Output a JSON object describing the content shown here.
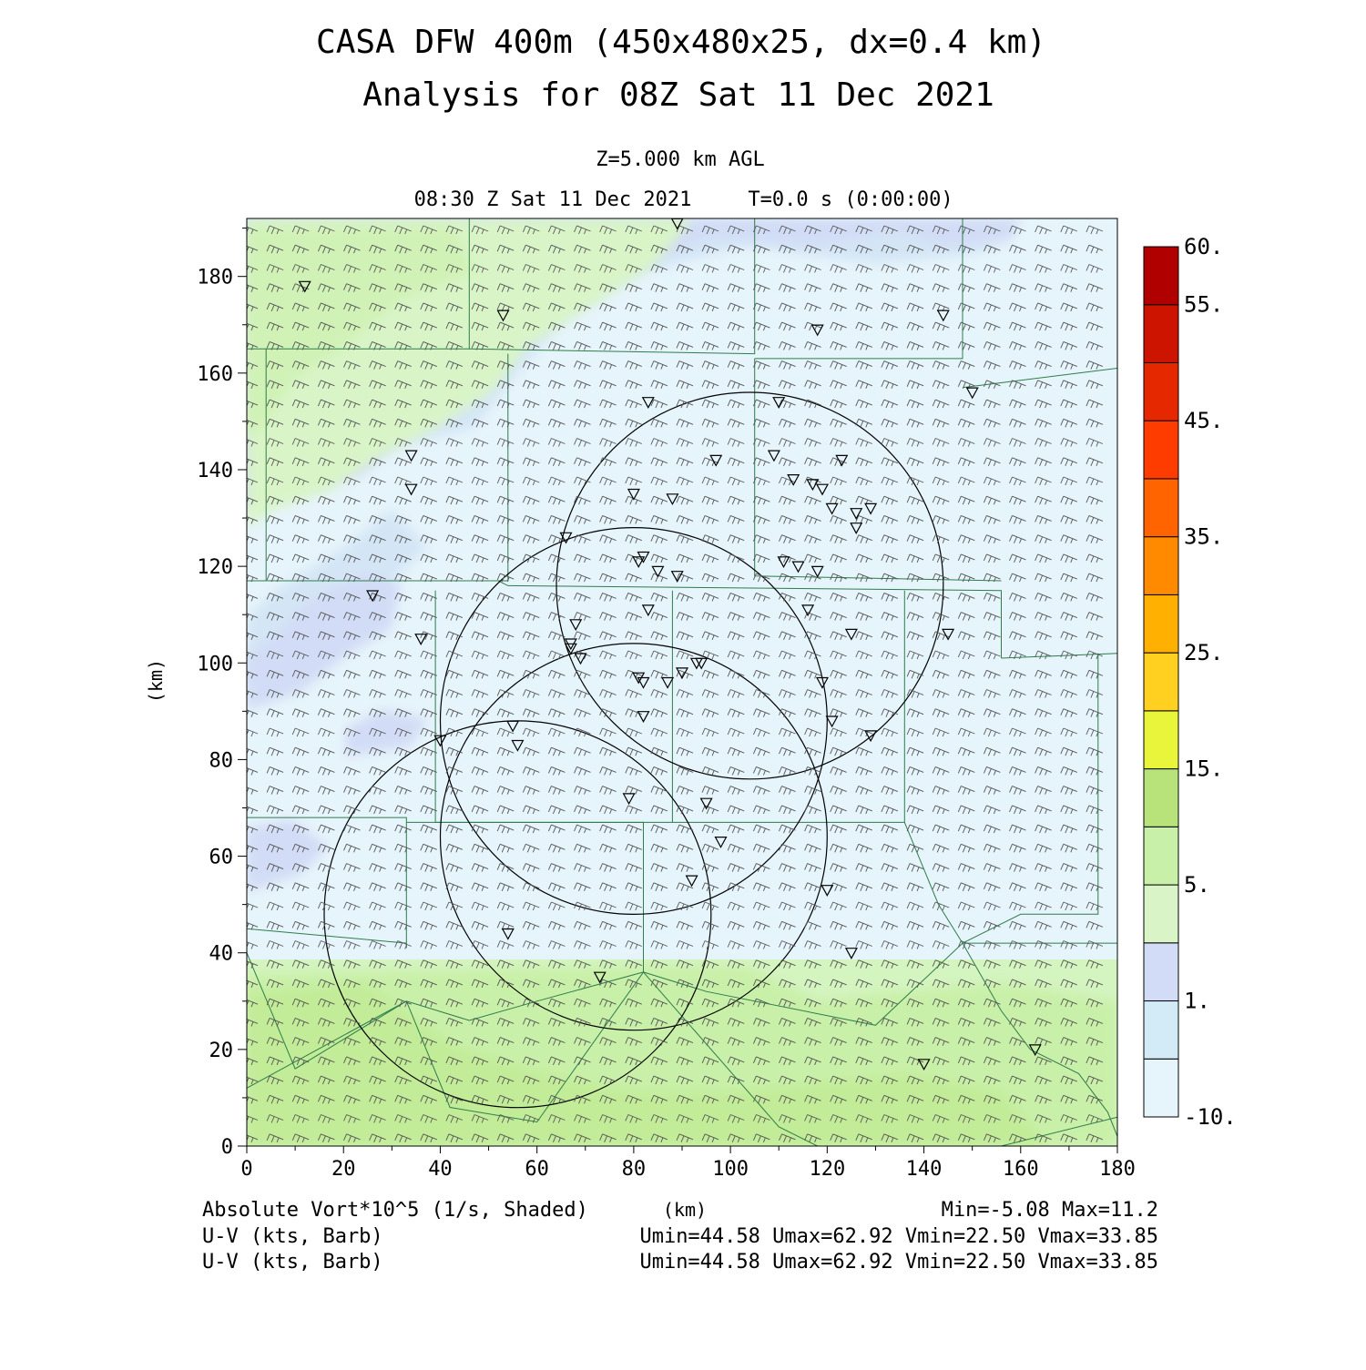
{
  "header": {
    "title_line1": "CASA DFW 400m (450x480x25, dx=0.4 km)",
    "title_line2": "Analysis for 08Z Sat 11 Dec 2021",
    "level": "Z=5.000 km AGL",
    "valid_time": "08:30 Z Sat 11 Dec 2021",
    "forecast_time": "T=0.0 s (0:00:00)"
  },
  "axes": {
    "x_unit": "(km)",
    "y_unit": "(km)",
    "x_ticks": [
      "0",
      "20",
      "40",
      "60",
      "80",
      "100",
      "120",
      "140",
      "160",
      "180"
    ],
    "y_ticks": [
      "0",
      "20",
      "40",
      "60",
      "80",
      "100",
      "120",
      "140",
      "160",
      "180"
    ]
  },
  "colorbar": {
    "labels": [
      "-10.",
      "1.",
      "5.",
      "15.",
      "25.",
      "35.",
      "45.",
      "55.",
      "60."
    ],
    "colors": [
      "#e6f4fb",
      "#d3eaf7",
      "#d2dcf6",
      "#d9f5c8",
      "#c9f0a8",
      "#b8e27a",
      "#e8f53a",
      "#ffd020",
      "#ffb000",
      "#ff8a00",
      "#ff6400",
      "#ff3c00",
      "#e62800",
      "#cc1400",
      "#b00000"
    ]
  },
  "footer": {
    "field_label": "Absolute Vort*10^5 (1/s, Shaded)",
    "x_axis_label": "(km)",
    "min_max": "Min=-5.08 Max=11.2",
    "barb_label_1": "U-V (kts, Barb)",
    "barb_stats_1": "Umin=44.58 Umax=62.92 Vmin=22.50 Vmax=33.85",
    "barb_label_2": "U-V (kts, Barb)",
    "barb_stats_2": "Umin=44.58 Umax=62.92 Vmin=22.50 Vmax=33.85"
  },
  "map": {
    "x_range_km": [
      0,
      180
    ],
    "y_range_km": [
      0,
      192
    ],
    "radar_rings": [
      {
        "center_km": [
          56,
          48
        ],
        "radius_km": 40
      },
      {
        "center_km": [
          80,
          64
        ],
        "radius_km": 40
      },
      {
        "center_km": [
          80,
          88
        ],
        "radius_km": 40
      },
      {
        "center_km": [
          104,
          116
        ],
        "radius_km": 40
      }
    ],
    "stations_km": [
      [
        12,
        178
      ],
      [
        53,
        172
      ],
      [
        118,
        169
      ],
      [
        144,
        172
      ],
      [
        150,
        156
      ],
      [
        83,
        154
      ],
      [
        110,
        154
      ],
      [
        34,
        143
      ],
      [
        97,
        142
      ],
      [
        109,
        143
      ],
      [
        123,
        142
      ],
      [
        34,
        136
      ],
      [
        80,
        135
      ],
      [
        88,
        134
      ],
      [
        113,
        138
      ],
      [
        117,
        137
      ],
      [
        119,
        136
      ],
      [
        121,
        132
      ],
      [
        126,
        131
      ],
      [
        129,
        132
      ],
      [
        126,
        128
      ],
      [
        66,
        126
      ],
      [
        81,
        121
      ],
      [
        82,
        122
      ],
      [
        85,
        119
      ],
      [
        89,
        118
      ],
      [
        111,
        121
      ],
      [
        114,
        120
      ],
      [
        118,
        119
      ],
      [
        26,
        114
      ],
      [
        83,
        111
      ],
      [
        116,
        111
      ],
      [
        68,
        108
      ],
      [
        125,
        106
      ],
      [
        36,
        105
      ],
      [
        145,
        106
      ],
      [
        67,
        104
      ],
      [
        67,
        103
      ],
      [
        69,
        101
      ],
      [
        93,
        100
      ],
      [
        94,
        100
      ],
      [
        81,
        97
      ],
      [
        82,
        96
      ],
      [
        87,
        96
      ],
      [
        90,
        98
      ],
      [
        119,
        96
      ],
      [
        82,
        89
      ],
      [
        121,
        88
      ],
      [
        55,
        87
      ],
      [
        129,
        85
      ],
      [
        40,
        84
      ],
      [
        56,
        83
      ],
      [
        79,
        72
      ],
      [
        95,
        71
      ],
      [
        98,
        63
      ],
      [
        92,
        55
      ],
      [
        120,
        53
      ],
      [
        54,
        44
      ],
      [
        125,
        40
      ],
      [
        73,
        35
      ],
      [
        140,
        17
      ],
      [
        163,
        20
      ],
      [
        89,
        191
      ]
    ],
    "boundaries_km": [
      [
        [
          0,
          165
        ],
        [
          46,
          165
        ],
        [
          46,
          192
        ]
      ],
      [
        [
          46,
          165
        ],
        [
          105,
          164
        ],
        [
          105,
          192
        ]
      ],
      [
        [
          105,
          163
        ],
        [
          148,
          163
        ],
        [
          148,
          192
        ]
      ],
      [
        [
          148,
          157
        ],
        [
          180,
          161
        ]
      ],
      [
        [
          4,
          165
        ],
        [
          4,
          117
        ],
        [
          54,
          117
        ],
        [
          54,
          164
        ]
      ],
      [
        [
          0,
          117
        ],
        [
          52,
          117
        ],
        [
          54,
          116
        ],
        [
          156,
          115
        ],
        [
          156,
          101
        ]
      ],
      [
        [
          156,
          101
        ],
        [
          180,
          102
        ]
      ],
      [
        [
          39,
          115
        ],
        [
          39,
          67
        ],
        [
          88,
          67
        ],
        [
          88,
          115
        ]
      ],
      [
        [
          88,
          67
        ],
        [
          136,
          67
        ],
        [
          136,
          115
        ]
      ],
      [
        [
          105,
          163
        ],
        [
          105,
          118
        ],
        [
          156,
          117
        ]
      ],
      [
        [
          0,
          68
        ],
        [
          33,
          68
        ],
        [
          33,
          41
        ]
      ],
      [
        [
          33,
          67
        ],
        [
          82,
          67
        ],
        [
          82,
          36
        ],
        [
          95,
          32
        ],
        [
          130,
          25
        ],
        [
          148,
          42
        ],
        [
          180,
          42
        ]
      ],
      [
        [
          0,
          45
        ],
        [
          33,
          42
        ]
      ],
      [
        [
          0,
          12
        ],
        [
          33,
          30
        ],
        [
          46,
          26
        ],
        [
          60,
          30
        ],
        [
          82,
          36
        ]
      ],
      [
        [
          0,
          40
        ],
        [
          10,
          16
        ],
        [
          33,
          30
        ]
      ],
      [
        [
          82,
          36
        ],
        [
          110,
          4
        ],
        [
          118,
          0
        ]
      ],
      [
        [
          136,
          67
        ],
        [
          143,
          50
        ],
        [
          148,
          42
        ],
        [
          160,
          48
        ],
        [
          176,
          48
        ],
        [
          176,
          102
        ]
      ],
      [
        [
          148,
          42
        ],
        [
          156,
          28
        ],
        [
          162,
          20
        ],
        [
          172,
          15
        ],
        [
          178,
          7
        ],
        [
          180,
          2
        ]
      ],
      [
        [
          180,
          6
        ],
        [
          156,
          0
        ]
      ],
      [
        [
          33,
          30
        ],
        [
          42,
          8
        ],
        [
          60,
          5
        ],
        [
          82,
          36
        ]
      ]
    ]
  }
}
